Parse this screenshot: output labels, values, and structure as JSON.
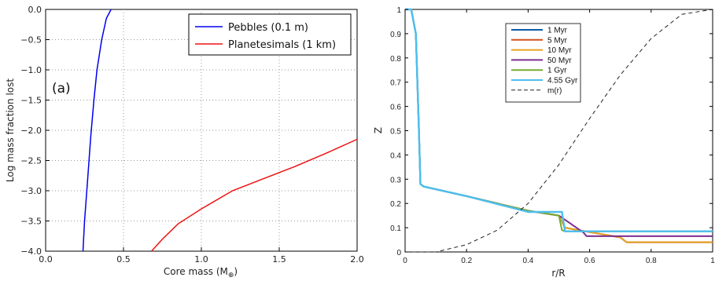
{
  "chart_data": [
    {
      "type": "line",
      "panel_label": "(a)",
      "xlabel": "Core mass (M",
      "xlabel_sub": "⊕",
      "xlabel_close": ")",
      "ylabel": "Log mass fraction lost",
      "xlim": [
        0,
        2
      ],
      "ylim": [
        -4,
        0
      ],
      "xticks": [
        "0.0",
        "0.5",
        "1.0",
        "1.5",
        "2.0"
      ],
      "yticks": [
        "0.0",
        "−0.5",
        "−1.0",
        "−1.5",
        "−2.0",
        "−2.5",
        "−3.0",
        "−3.5",
        "−4.0"
      ],
      "grid": true,
      "legend_position": "top-right",
      "series": [
        {
          "name": "Pebbles (0.1 m)",
          "color": "#0000ee",
          "x": [
            0.24,
            0.25,
            0.27,
            0.29,
            0.31,
            0.33,
            0.36,
            0.39,
            0.42
          ],
          "y": [
            -4.0,
            -3.5,
            -2.8,
            -2.1,
            -1.5,
            -1.0,
            -0.5,
            -0.15,
            0.0
          ]
        },
        {
          "name": "Planetesimals (1 km)",
          "color": "#ee1111",
          "x": [
            0.68,
            0.75,
            0.85,
            1.0,
            1.2,
            1.4,
            1.6,
            1.8,
            2.0
          ],
          "y": [
            -4.0,
            -3.8,
            -3.55,
            -3.3,
            -3.0,
            -2.8,
            -2.6,
            -2.38,
            -2.15
          ]
        }
      ]
    },
    {
      "type": "line",
      "xlabel": "r/R",
      "ylabel": "Z",
      "xlim": [
        0,
        1
      ],
      "ylim": [
        0,
        1
      ],
      "xticks": [
        "0",
        "0.2",
        "0.4",
        "0.6",
        "0.8",
        "1"
      ],
      "yticks": [
        "0",
        "0.1",
        "0.2",
        "0.3",
        "0.4",
        "0.5",
        "0.6",
        "0.7",
        "0.8",
        "0.9",
        "1"
      ],
      "grid": false,
      "legend_position": "top-left",
      "series": [
        {
          "name": "1 Myr",
          "color": "#0c5ba8",
          "x": [
            0,
            0.02,
            0.035,
            0.045,
            0.05,
            0.06,
            0.2,
            0.4,
            0.5,
            0.52,
            0.7,
            0.72,
            1.0
          ],
          "y": [
            1,
            1,
            0.9,
            0.5,
            0.28,
            0.27,
            0.23,
            0.17,
            0.15,
            0.1,
            0.06,
            0.04,
            0.04
          ]
        },
        {
          "name": "5 Myr",
          "color": "#d2501e",
          "x": [
            0,
            0.02,
            0.035,
            0.045,
            0.05,
            0.06,
            0.2,
            0.4,
            0.5,
            0.52,
            0.7,
            0.72,
            1.0
          ],
          "y": [
            1,
            1,
            0.9,
            0.5,
            0.28,
            0.27,
            0.23,
            0.17,
            0.15,
            0.1,
            0.06,
            0.04,
            0.04
          ]
        },
        {
          "name": "10 Myr",
          "color": "#e8a323",
          "x": [
            0,
            0.02,
            0.035,
            0.045,
            0.05,
            0.06,
            0.2,
            0.4,
            0.5,
            0.52,
            0.7,
            0.72,
            1.0
          ],
          "y": [
            1,
            1,
            0.9,
            0.5,
            0.28,
            0.27,
            0.23,
            0.17,
            0.15,
            0.1,
            0.06,
            0.04,
            0.04
          ]
        },
        {
          "name": "50 Myr",
          "color": "#7d2e8e",
          "x": [
            0,
            0.02,
            0.035,
            0.045,
            0.05,
            0.06,
            0.2,
            0.4,
            0.5,
            0.58,
            0.59,
            1.0
          ],
          "y": [
            1,
            1,
            0.9,
            0.5,
            0.28,
            0.27,
            0.23,
            0.17,
            0.15,
            0.08,
            0.065,
            0.065
          ]
        },
        {
          "name": "1 Gyr",
          "color": "#77ac30",
          "x": [
            0,
            0.02,
            0.035,
            0.045,
            0.05,
            0.06,
            0.2,
            0.4,
            0.5,
            0.51,
            0.52,
            1.0
          ],
          "y": [
            1,
            1,
            0.9,
            0.5,
            0.28,
            0.27,
            0.23,
            0.17,
            0.15,
            0.09,
            0.085,
            0.085
          ]
        },
        {
          "name": "4.55 Gyr",
          "color": "#4dbeee",
          "x": [
            0,
            0.02,
            0.035,
            0.045,
            0.05,
            0.06,
            0.2,
            0.4,
            0.51,
            0.52,
            0.63,
            1.0
          ],
          "y": [
            1,
            1,
            0.9,
            0.5,
            0.28,
            0.27,
            0.23,
            0.165,
            0.165,
            0.085,
            0.085,
            0.085
          ]
        },
        {
          "name": "m(r)",
          "color": "#222222",
          "dash": true,
          "x": [
            0,
            0.1,
            0.2,
            0.3,
            0.4,
            0.5,
            0.6,
            0.7,
            0.8,
            0.9,
            1.0
          ],
          "y": [
            0,
            0,
            0.03,
            0.09,
            0.2,
            0.36,
            0.55,
            0.73,
            0.88,
            0.98,
            1.0
          ]
        }
      ]
    }
  ]
}
